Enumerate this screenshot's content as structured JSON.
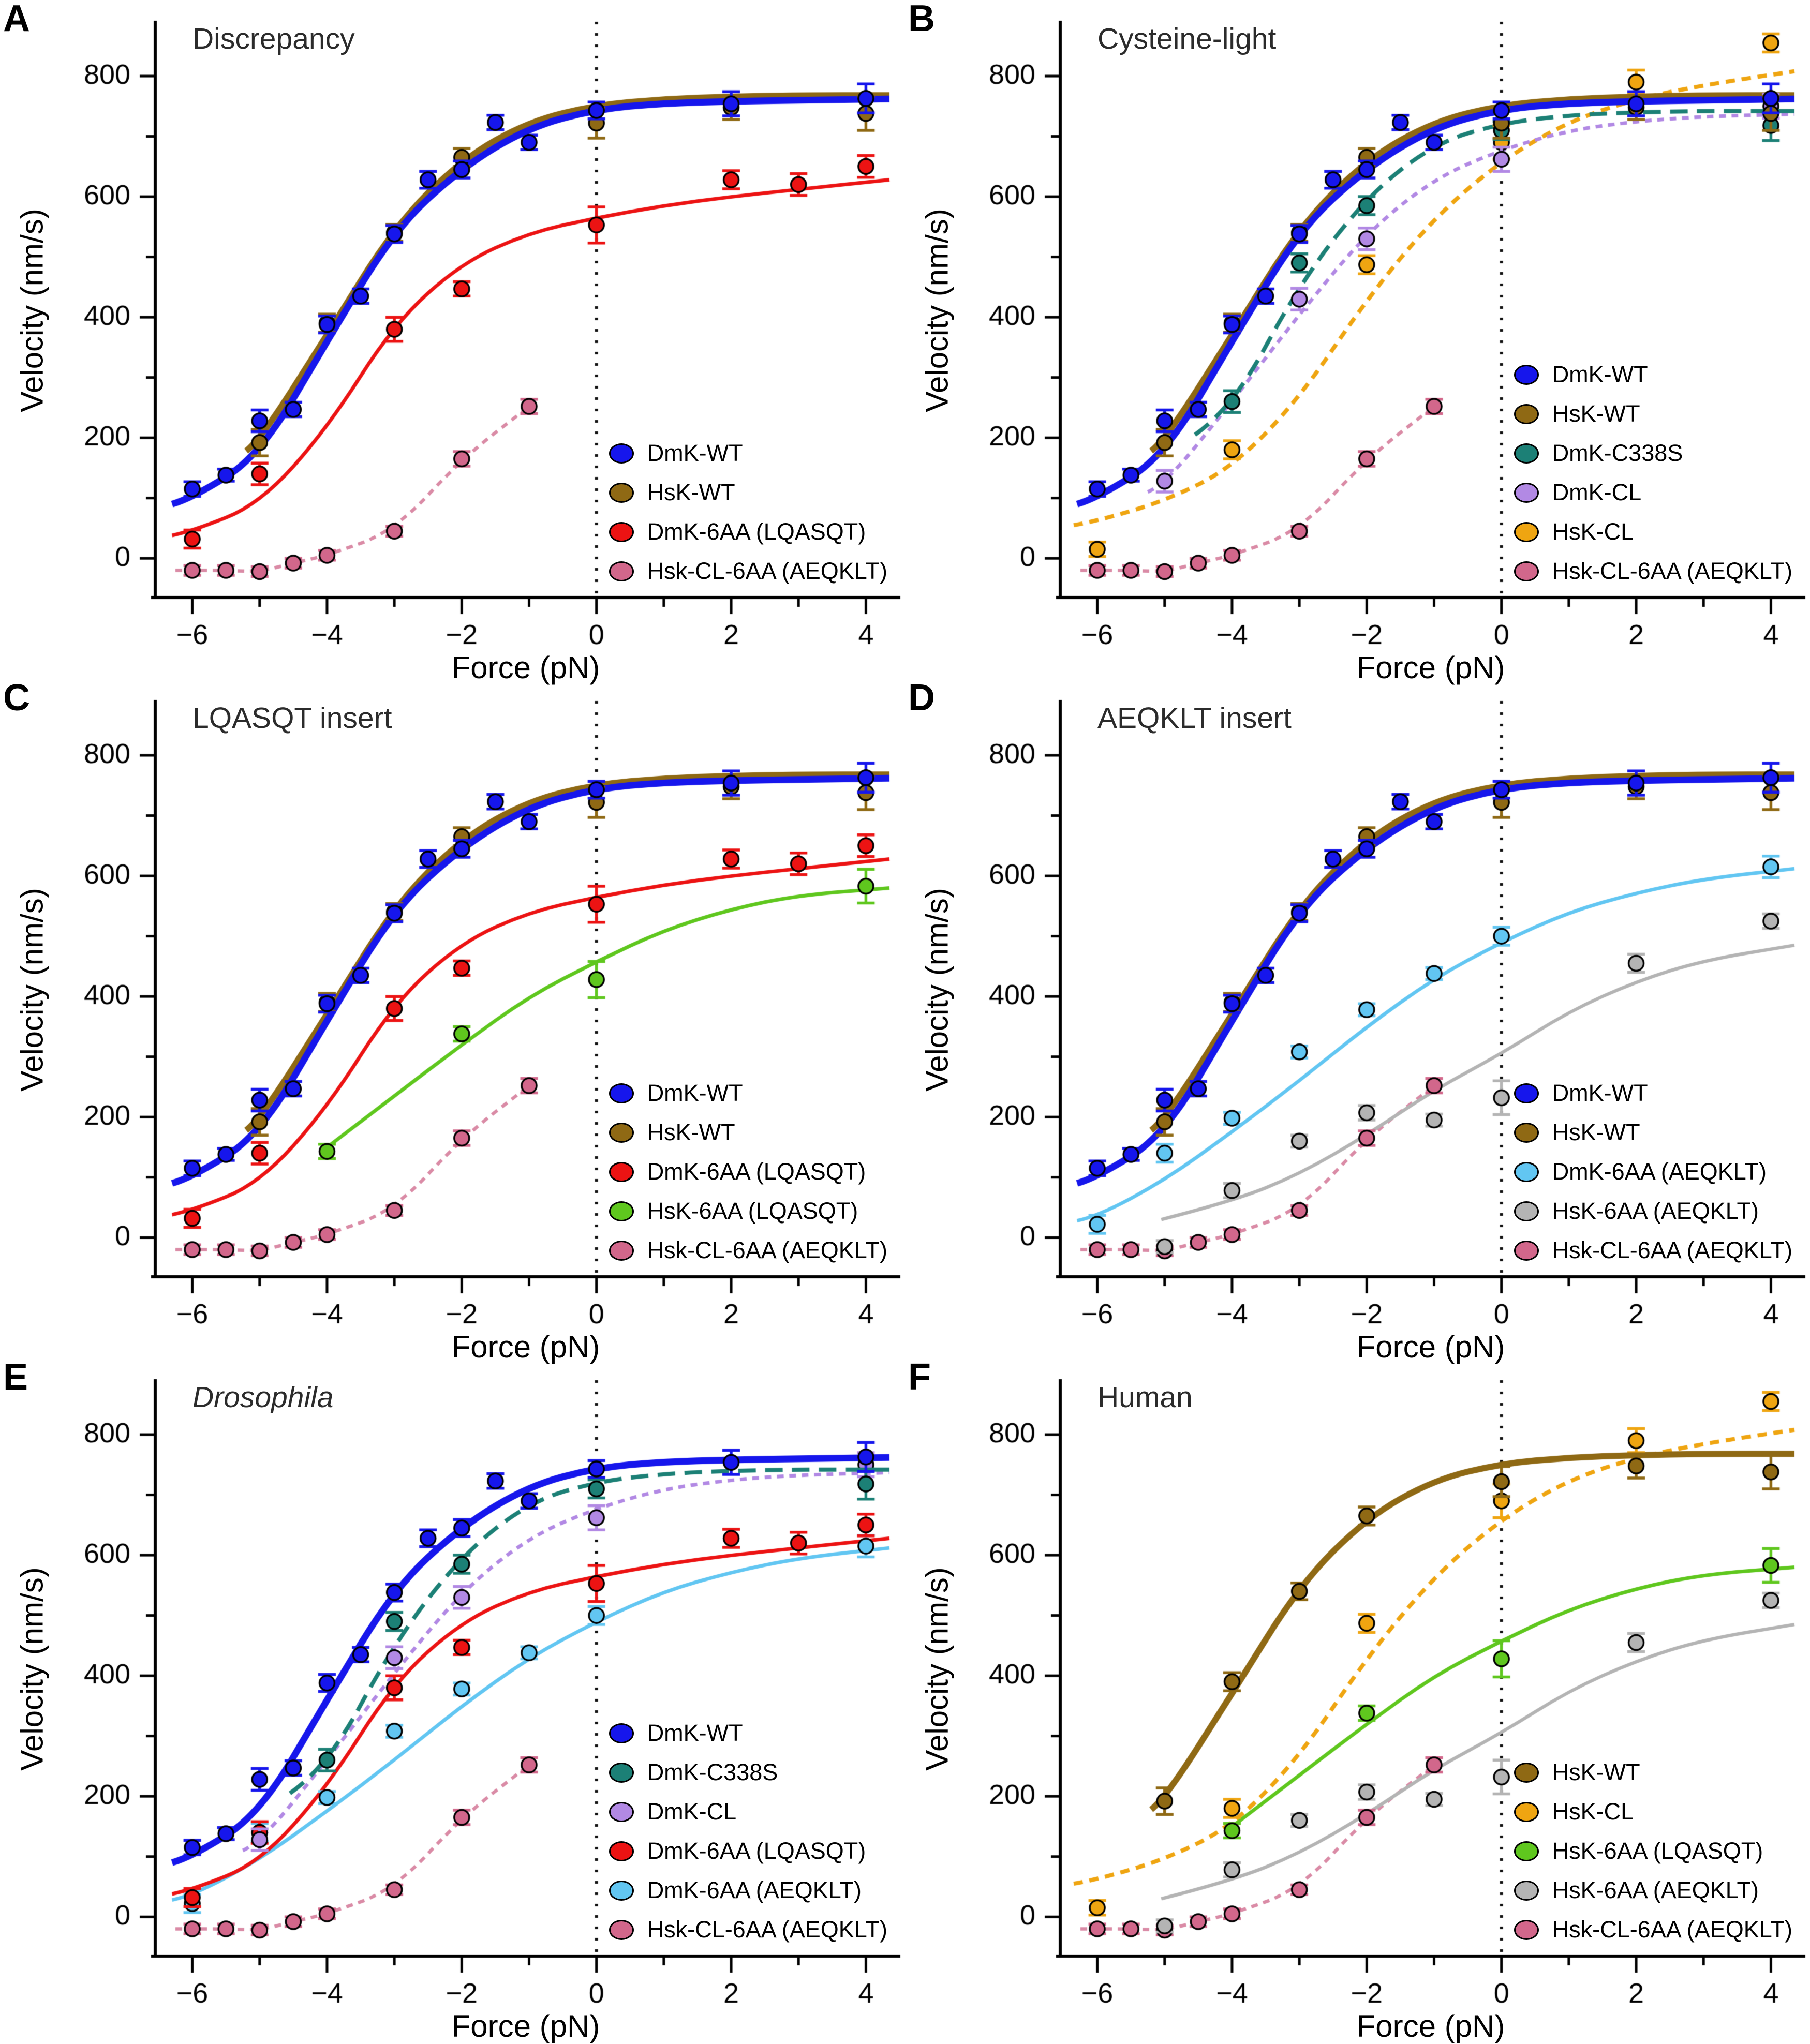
{
  "chart_data": {
    "type": "scatter",
    "x_label": "Force (pN)",
    "y_label": "Velocity (nm/s)",
    "x_ticks": [
      -6,
      -4,
      -2,
      0,
      2,
      4
    ],
    "x_minor_ticks": [
      -5,
      -3,
      -1,
      1,
      3
    ],
    "y_ticks": [
      0,
      200,
      400,
      600,
      800
    ],
    "y_minor_ticks": [
      100,
      300,
      500,
      700
    ],
    "x_range": [
      -6.55,
      4.45
    ],
    "y_range": [
      -65,
      885
    ],
    "zero_line_x": 0,
    "axis_color": "#000000",
    "series": {
      "DmK_WT": {
        "label": "DmK-WT",
        "color": "#1616EC",
        "line_width": 13,
        "dash": null,
        "curve": [
          [
            -6.3,
            90
          ],
          [
            -6,
            100
          ],
          [
            -5,
            170
          ],
          [
            -4,
            360
          ],
          [
            -3,
            545
          ],
          [
            -2,
            648
          ],
          [
            -1,
            715
          ],
          [
            0,
            745
          ],
          [
            1,
            755
          ],
          [
            2,
            758
          ],
          [
            3,
            760
          ],
          [
            4.35,
            762
          ]
        ],
        "points": {
          "x": [
            -6,
            -5.5,
            -5,
            -4.5,
            -4,
            -3.5,
            -3,
            -2.5,
            -2,
            -1.5,
            -1,
            0,
            2,
            4
          ],
          "y": [
            115,
            138,
            228,
            247,
            388,
            435,
            538,
            628,
            645,
            723,
            690,
            743,
            754,
            763
          ],
          "err": [
            12,
            10,
            18,
            12,
            14,
            12,
            14,
            14,
            14,
            12,
            12,
            14,
            20,
            24
          ]
        }
      },
      "HsK_WT": {
        "label": "HsK-WT",
        "color": "#8F6914",
        "line_width": 12,
        "dash": null,
        "curve": [
          [
            -5.2,
            178
          ],
          [
            -5,
            195
          ],
          [
            -4,
            370
          ],
          [
            -3,
            550
          ],
          [
            -2,
            662
          ],
          [
            -1,
            725
          ],
          [
            0,
            752
          ],
          [
            1,
            762
          ],
          [
            2,
            766
          ],
          [
            3,
            768
          ],
          [
            4.35,
            768
          ]
        ],
        "points": {
          "x": [
            -5,
            -4,
            -3,
            -2,
            0,
            2,
            4
          ],
          "y": [
            192,
            390,
            540,
            665,
            722,
            748,
            738
          ],
          "err": [
            22,
            15,
            14,
            15,
            25,
            20,
            28
          ]
        }
      },
      "DmK_C338S": {
        "label": "DmK-C338S",
        "color": "#1C8076",
        "line_width": 8,
        "dash": [
          34,
          18
        ],
        "curve": [
          [
            -4.55,
            205
          ],
          [
            -4,
            248
          ],
          [
            -3,
            455
          ],
          [
            -2,
            600
          ],
          [
            -1,
            688
          ],
          [
            0,
            722
          ],
          [
            1,
            735
          ],
          [
            2,
            740
          ],
          [
            3,
            742
          ],
          [
            4.35,
            742
          ]
        ],
        "points": {
          "x": [
            -4,
            -3,
            -2,
            0,
            4
          ],
          "y": [
            260,
            490,
            585,
            710,
            718
          ],
          "err": [
            18,
            15,
            15,
            15,
            25
          ]
        }
      },
      "DmK_CL": {
        "label": "DmK-CL",
        "color": "#B289E4",
        "line_width": 7,
        "dash": [
          13,
          11
        ],
        "curve": [
          [
            -5.25,
            110
          ],
          [
            -5,
            122
          ],
          [
            -4,
            260
          ],
          [
            -3,
            405
          ],
          [
            -2,
            540
          ],
          [
            -1,
            630
          ],
          [
            0,
            678
          ],
          [
            1,
            710
          ],
          [
            2,
            725
          ],
          [
            3,
            733
          ],
          [
            4.35,
            737
          ]
        ],
        "points": {
          "x": [
            -5,
            -3,
            -2,
            0,
            4
          ],
          "y": [
            128,
            430,
            530,
            662,
            750
          ],
          "err": [
            18,
            18,
            18,
            20,
            20
          ]
        }
      },
      "HsK_CL": {
        "label": "HsK-CL",
        "color": "#EFA511",
        "line_width": 8,
        "dash": [
          18,
          13
        ],
        "curve": [
          [
            -6.35,
            55
          ],
          [
            -6,
            62
          ],
          [
            -5,
            95
          ],
          [
            -4,
            150
          ],
          [
            -3,
            265
          ],
          [
            -2,
            430
          ],
          [
            -1,
            565
          ],
          [
            0,
            660
          ],
          [
            1,
            725
          ],
          [
            2,
            762
          ],
          [
            3,
            785
          ],
          [
            4.35,
            808
          ]
        ],
        "points": {
          "x": [
            -6,
            -4,
            -2,
            0,
            2,
            4
          ],
          "y": [
            15,
            180,
            487,
            690,
            790,
            855
          ],
          "err": [
            12,
            15,
            15,
            28,
            20,
            15
          ]
        }
      },
      "DmK_6AA_LQ": {
        "label": "DmK-6AA (LQASQT)",
        "color": "#EC1313",
        "line_width": 7,
        "dash": null,
        "curve": [
          [
            -6.3,
            38
          ],
          [
            -6,
            45
          ],
          [
            -5,
            90
          ],
          [
            -4,
            215
          ],
          [
            -3,
            390
          ],
          [
            -2,
            490
          ],
          [
            -1,
            540
          ],
          [
            0,
            565
          ],
          [
            1,
            585
          ],
          [
            2,
            600
          ],
          [
            3,
            612
          ],
          [
            4.35,
            628
          ]
        ],
        "points": {
          "x": [
            -6,
            -5,
            -3,
            -2,
            0,
            2,
            3,
            4
          ],
          "y": [
            32,
            140,
            380,
            447,
            553,
            628,
            620,
            650
          ],
          "err": [
            15,
            18,
            20,
            12,
            30,
            15,
            18,
            18
          ]
        }
      },
      "HsK_6AA_LQ": {
        "label": "HsK-6AA (LQASQT)",
        "color": "#5FC71E",
        "line_width": 7,
        "dash": null,
        "curve": [
          [
            -4.02,
            148
          ],
          [
            -3,
            235
          ],
          [
            -2,
            320
          ],
          [
            -1,
            400
          ],
          [
            0,
            458
          ],
          [
            1,
            510
          ],
          [
            2,
            545
          ],
          [
            3,
            568
          ],
          [
            4.35,
            580
          ]
        ],
        "points": {
          "x": [
            -4,
            -2,
            0,
            4
          ],
          "y": [
            143,
            338,
            428,
            583
          ],
          "err": [
            12,
            12,
            30,
            28
          ]
        }
      },
      "DmK_6AA_AE": {
        "label": "DmK-6AA (AEQKLT)",
        "color": "#62C6F2",
        "line_width": 7,
        "dash": null,
        "curve": [
          [
            -6.3,
            28
          ],
          [
            -6,
            35
          ],
          [
            -5,
            95
          ],
          [
            -4,
            175
          ],
          [
            -3,
            260
          ],
          [
            -2,
            350
          ],
          [
            -1,
            430
          ],
          [
            0,
            490
          ],
          [
            1,
            540
          ],
          [
            2,
            572
          ],
          [
            3,
            595
          ],
          [
            4.35,
            612
          ]
        ],
        "points": {
          "x": [
            -6,
            -5,
            -4,
            -3,
            -2,
            -1,
            0,
            4
          ],
          "y": [
            22,
            140,
            198,
            308,
            378,
            438,
            500,
            615
          ],
          "err": [
            15,
            15,
            10,
            10,
            10,
            10,
            15,
            18
          ]
        }
      },
      "HsK_6AA_AE": {
        "label": "HsK-6AA (AEQKLT)",
        "color": "#B4B4B4",
        "line_width": 6.5,
        "dash": null,
        "curve": [
          [
            -5.05,
            30
          ],
          [
            -4,
            60
          ],
          [
            -3,
            105
          ],
          [
            -2,
            170
          ],
          [
            -1,
            245
          ],
          [
            0,
            305
          ],
          [
            1,
            375
          ],
          [
            2,
            425
          ],
          [
            3,
            460
          ],
          [
            4.35,
            485
          ]
        ],
        "points": {
          "x": [
            -5,
            -4,
            -3,
            -2,
            -1,
            0,
            2,
            4
          ],
          "y": [
            -15,
            78,
            160,
            207,
            195,
            232,
            455,
            525
          ],
          "err": [
            10,
            12,
            10,
            12,
            10,
            28,
            15,
            12
          ]
        }
      },
      "Hsk_CL_6AA": {
        "label": "Hsk-CL-6AA (AEQKLT)",
        "color": "#D2678B",
        "line_color": "#DA8BA6",
        "line_width": 6.5,
        "dash": [
          13,
          11
        ],
        "curve": [
          [
            -6.25,
            -20
          ],
          [
            -6,
            -20
          ],
          [
            -5.5,
            -20
          ],
          [
            -5,
            -22
          ],
          [
            -4.5,
            -8
          ],
          [
            -4,
            5
          ],
          [
            -3,
            45
          ],
          [
            -2,
            165
          ],
          [
            -1,
            252
          ],
          [
            -0.92,
            258
          ]
        ],
        "points": {
          "x": [
            -6,
            -5.5,
            -5,
            -4.5,
            -4,
            -3,
            -2,
            -1
          ],
          "y": [
            -20,
            -20,
            -22,
            -8,
            5,
            45,
            165,
            252
          ],
          "err": [
            8,
            8,
            8,
            8,
            8,
            8,
            12,
            12
          ]
        }
      }
    },
    "panels": [
      {
        "letter": "A",
        "title": "Discrepancy",
        "italic": false,
        "series": [
          "DmK_WT",
          "HsK_WT",
          "DmK_6AA_LQ",
          "Hsk_CL_6AA"
        ]
      },
      {
        "letter": "B",
        "title": "Cysteine-light",
        "italic": false,
        "series": [
          "DmK_WT",
          "HsK_WT",
          "DmK_C338S",
          "DmK_CL",
          "HsK_CL",
          "Hsk_CL_6AA"
        ]
      },
      {
        "letter": "C",
        "title": "LQASQT insert",
        "italic": false,
        "series": [
          "DmK_WT",
          "HsK_WT",
          "DmK_6AA_LQ",
          "HsK_6AA_LQ",
          "Hsk_CL_6AA"
        ]
      },
      {
        "letter": "D",
        "title": "AEQKLT insert",
        "italic": false,
        "series": [
          "DmK_WT",
          "HsK_WT",
          "DmK_6AA_AE",
          "HsK_6AA_AE",
          "Hsk_CL_6AA"
        ]
      },
      {
        "letter": "E",
        "title": "Drosophila",
        "italic": true,
        "series": [
          "DmK_WT",
          "DmK_C338S",
          "DmK_CL",
          "DmK_6AA_LQ",
          "DmK_6AA_AE",
          "Hsk_CL_6AA"
        ]
      },
      {
        "letter": "F",
        "title": "Human",
        "italic": false,
        "series": [
          "HsK_WT",
          "HsK_CL",
          "HsK_6AA_LQ",
          "HsK_6AA_AE",
          "Hsk_CL_6AA"
        ]
      }
    ]
  }
}
